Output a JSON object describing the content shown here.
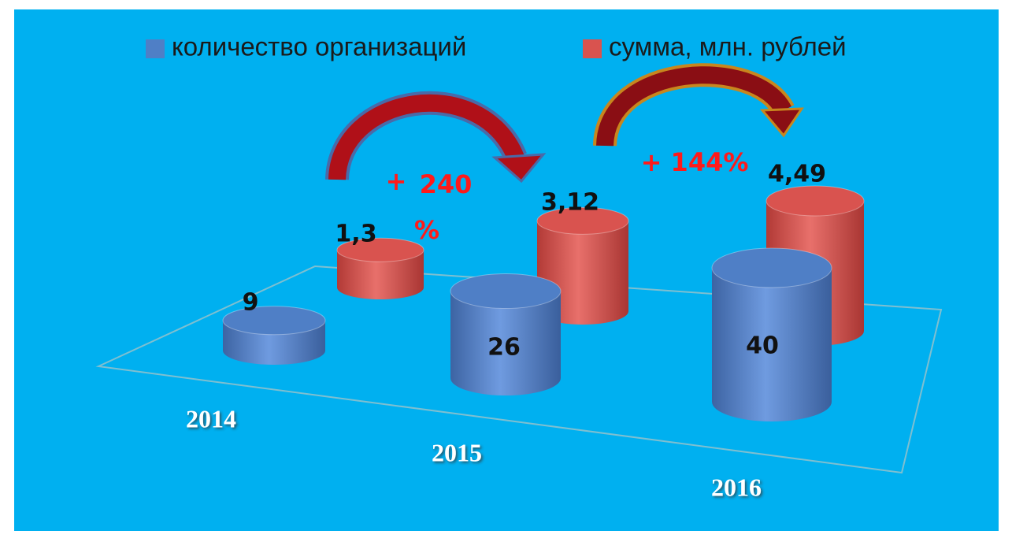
{
  "chart_data": {
    "type": "cylinder3d",
    "categories": [
      "2014",
      "2015",
      "2016"
    ],
    "series": [
      {
        "name": "количество организаций",
        "color": "#4f7fc6",
        "values": [
          9,
          26,
          40
        ],
        "value_labels": [
          "9",
          "26",
          "40"
        ]
      },
      {
        "name": "сумма, млн. рублей",
        "color": "#d9534f",
        "values": [
          1.3,
          3.12,
          4.49
        ],
        "value_labels": [
          "1,3",
          "3,12",
          "4,49"
        ]
      }
    ],
    "annotations": [
      "+",
      "240",
      "%",
      "+ 144%"
    ],
    "legend": "top"
  }
}
